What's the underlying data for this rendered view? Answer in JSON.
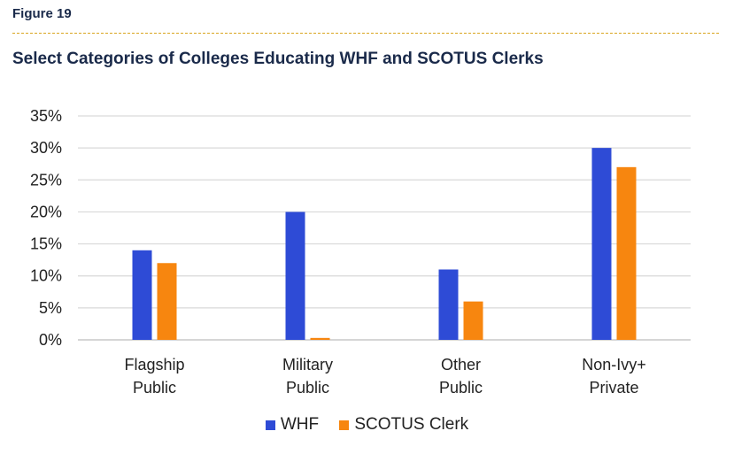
{
  "figure_label": "Figure 19",
  "title": "Select Categories of Colleges Educating WHF and SCOTUS Clerks",
  "chart_data": {
    "type": "bar",
    "title": "Select Categories of Colleges Educating WHF and SCOTUS Clerks",
    "categories": [
      [
        "Flagship",
        "Public"
      ],
      [
        "Military",
        "Public"
      ],
      [
        "Other",
        "Public"
      ],
      [
        "Non-Ivy+",
        "Private"
      ]
    ],
    "series": [
      {
        "name": "WHF",
        "color": "#2e4bd6",
        "values": [
          14,
          20,
          11,
          30
        ]
      },
      {
        "name": "SCOTUS Clerk",
        "color": "#f7860f",
        "values": [
          12,
          0.3,
          6,
          27
        ]
      }
    ],
    "yticks": [
      "0%",
      "5%",
      "10%",
      "15%",
      "20%",
      "25%",
      "30%",
      "35%"
    ],
    "ylim": [
      0,
      35
    ],
    "grid": true,
    "legend_position": "bottom"
  }
}
